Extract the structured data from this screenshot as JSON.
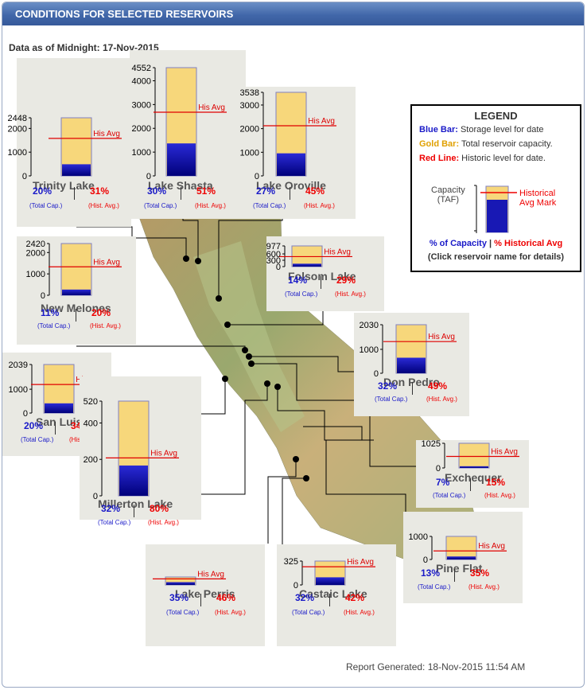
{
  "header": {
    "title": "CONDITIONS FOR SELECTED RESERVOIRS"
  },
  "data_as_of": "Data as of Midnight: 17-Nov-2015",
  "report_generated": "Report Generated: 18-Nov-2015 11:54 AM",
  "his_avg_label": "His Avg",
  "total_cap_label": "(Total Cap.)",
  "hist_avg_label": "(Hist. Avg.)",
  "legend": {
    "title": "LEGEND",
    "blue_key": "Blue Bar:",
    "blue_text": " Storage level for date",
    "gold_key": "Gold Bar:",
    "gold_text": " Total reservoir capacity.",
    "red_key": "Red Line:",
    "red_text": " Historic level for date.",
    "capacity_label_1": "Capacity",
    "capacity_label_2": "(TAF)",
    "hist_mark_1": "Historical",
    "hist_mark_2": "Avg Mark",
    "pct_capacity": "% of Capacity",
    "sep": " | ",
    "pct_hist": "% Historical Avg",
    "click": "(Click reservoir name for details)"
  },
  "colors": {
    "header": "#4167a9",
    "capacity_bar": "#f7d77b",
    "storage_bar": "#1010c0",
    "hist_line": "#e00000",
    "pct_capacity_text": "#1a1ac8",
    "pct_hist_text": "#e00000"
  },
  "reservoirs": [
    {
      "name": "Trinity Lake",
      "capacity": 2448,
      "ticks": [
        "2448",
        "2000",
        "1000",
        "0"
      ],
      "pct_capacity": 20,
      "pct_hist": 31,
      "pct_capacity_text": "20%",
      "pct_hist_text": "31%"
    },
    {
      "name": "Lake Shasta",
      "capacity": 4552,
      "ticks": [
        "4552",
        "4000",
        "3000",
        "2000",
        "1000",
        "0"
      ],
      "pct_capacity": 30,
      "pct_hist": 51,
      "pct_capacity_text": "30%",
      "pct_hist_text": "51%"
    },
    {
      "name": "Lake Oroville",
      "capacity": 3538,
      "ticks": [
        "3538",
        "3000",
        "2000",
        "1000",
        "0"
      ],
      "pct_capacity": 27,
      "pct_hist": 45,
      "pct_capacity_text": "27%",
      "pct_hist_text": "45%"
    },
    {
      "name": "New Melones",
      "capacity": 2420,
      "ticks": [
        "2420",
        "2000",
        "1000",
        "0"
      ],
      "pct_capacity": 11,
      "pct_hist": 20,
      "pct_capacity_text": "11%",
      "pct_hist_text": "20%"
    },
    {
      "name": "Folsom Lake",
      "capacity": 977,
      "ticks": [
        "977",
        "600",
        "300",
        "0"
      ],
      "pct_capacity": 14,
      "pct_hist": 29,
      "pct_capacity_text": "14%",
      "pct_hist_text": "29%"
    },
    {
      "name": "Don Pedro",
      "capacity": 2030,
      "ticks": [
        "2030",
        "1000",
        "0"
      ],
      "pct_capacity": 32,
      "pct_hist": 49,
      "pct_capacity_text": "32%",
      "pct_hist_text": "49%"
    },
    {
      "name": "San Luis",
      "capacity": 2039,
      "ticks": [
        "2039",
        "1000",
        "0"
      ],
      "pct_capacity": 20,
      "pct_hist": 34,
      "pct_capacity_text": "20%",
      "pct_hist_text": "34%"
    },
    {
      "name": "Millerton Lake",
      "capacity": 520,
      "ticks": [
        "520",
        "400",
        "200",
        "0"
      ],
      "pct_capacity": 32,
      "pct_hist": 80,
      "pct_capacity_text": "32%",
      "pct_hist_text": "80%"
    },
    {
      "name": "Exchequer",
      "capacity": 1025,
      "ticks": [
        "1025",
        "0"
      ],
      "pct_capacity": 7,
      "pct_hist": 15,
      "pct_capacity_text": "7%",
      "pct_hist_text": "15%"
    },
    {
      "name": "Pine Flat",
      "capacity": 1000,
      "ticks": [
        "1000",
        "0"
      ],
      "pct_capacity": 13,
      "pct_hist": 35,
      "pct_capacity_text": "13%",
      "pct_hist_text": "35%"
    },
    {
      "name": "Lake Perris",
      "capacity": null,
      "ticks": [],
      "pct_capacity": 35,
      "pct_hist": 46,
      "pct_capacity_text": "35%",
      "pct_hist_text": "46%"
    },
    {
      "name": "Castaic Lake",
      "capacity": 325,
      "ticks": [
        "325",
        "0"
      ],
      "pct_capacity": 32,
      "pct_hist": 42,
      "pct_capacity_text": "32%",
      "pct_hist_text": "42%"
    }
  ]
}
